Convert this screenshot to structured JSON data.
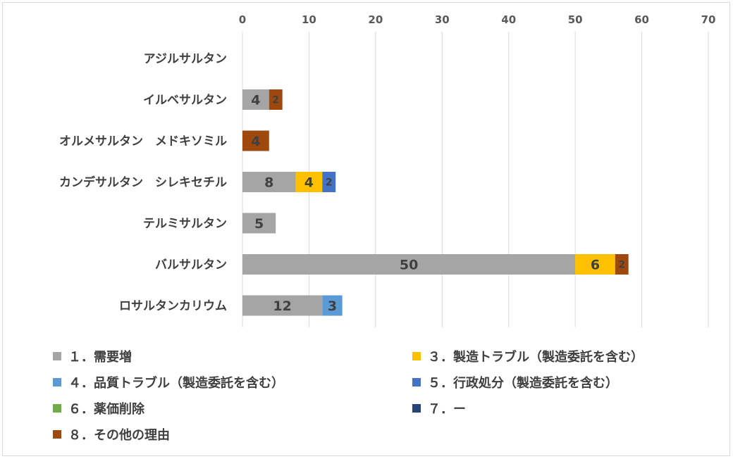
{
  "chart_data": {
    "type": "bar",
    "orientation": "horizontal",
    "stacked": true,
    "title": "",
    "xlabel": "",
    "ylabel": "",
    "xlim": [
      0,
      70
    ],
    "xticks": [
      0,
      10,
      20,
      30,
      40,
      50,
      60,
      70
    ],
    "x_axis_position": "top",
    "grid": true,
    "legend_position": "bottom",
    "categories": [
      "アジルサルタン",
      "イルベサルタン",
      "オルメサルタン　メドキソミル",
      "カンデサルタン　シレキセチル",
      "テルミサルタン",
      "バルサルタン",
      "ロサルタンカリウム"
    ],
    "series": [
      {
        "name": "１．需要増",
        "color": "#a5a5a5",
        "values": [
          0,
          4,
          0,
          8,
          5,
          50,
          12
        ]
      },
      {
        "name": "３．製造トラブル（製造委託を含む）",
        "color": "#ffc000",
        "values": [
          0,
          0,
          0,
          4,
          0,
          6,
          0
        ]
      },
      {
        "name": "４．品質トラブル（製造委託を含む）",
        "color": "#5b9bd5",
        "values": [
          0,
          0,
          0,
          0,
          0,
          0,
          3
        ]
      },
      {
        "name": "５．行政処分（製造委託を含む）",
        "color": "#4472c4",
        "values": [
          0,
          0,
          0,
          2,
          0,
          0,
          0
        ]
      },
      {
        "name": "６．薬価削除",
        "color": "#70ad47",
        "values": [
          0,
          0,
          0,
          0,
          0,
          0,
          0
        ]
      },
      {
        "name": "７．ー",
        "color": "#264478",
        "values": [
          0,
          0,
          0,
          0,
          0,
          0,
          0
        ]
      },
      {
        "name": "８．その他の理由",
        "color": "#9e480e",
        "values": [
          0,
          2,
          4,
          0,
          0,
          2,
          0
        ]
      }
    ]
  }
}
